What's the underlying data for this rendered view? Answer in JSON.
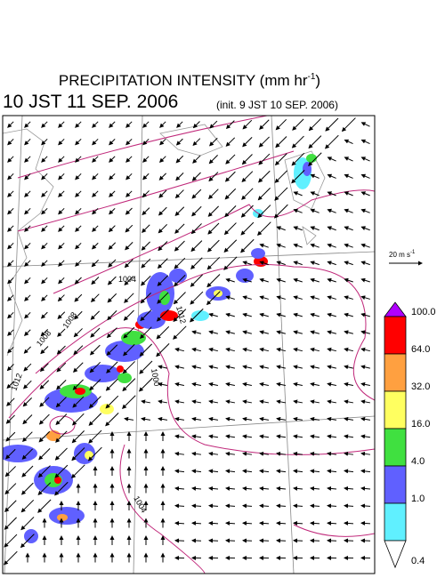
{
  "header": {
    "title": {
      "text": "PRECIPITATION INTENSITY (mm hr",
      "exponent": "-1",
      "suffix": ")"
    },
    "valid_time": "10 JST 11 SEP. 2006",
    "init_time": "(init. 9 JST 10 SEP. 2006)"
  },
  "wind_scale": {
    "text": "20 m s",
    "exponent": "-1"
  },
  "colorbar": {
    "labels": [
      "100.0",
      "64.0",
      "32.0",
      "16.0",
      "4.0",
      "1.0",
      "0.4"
    ]
  },
  "contour_labels": [
    "1004",
    "1008",
    "1012",
    "1000",
    "1008",
    "1012",
    "1004"
  ]
}
